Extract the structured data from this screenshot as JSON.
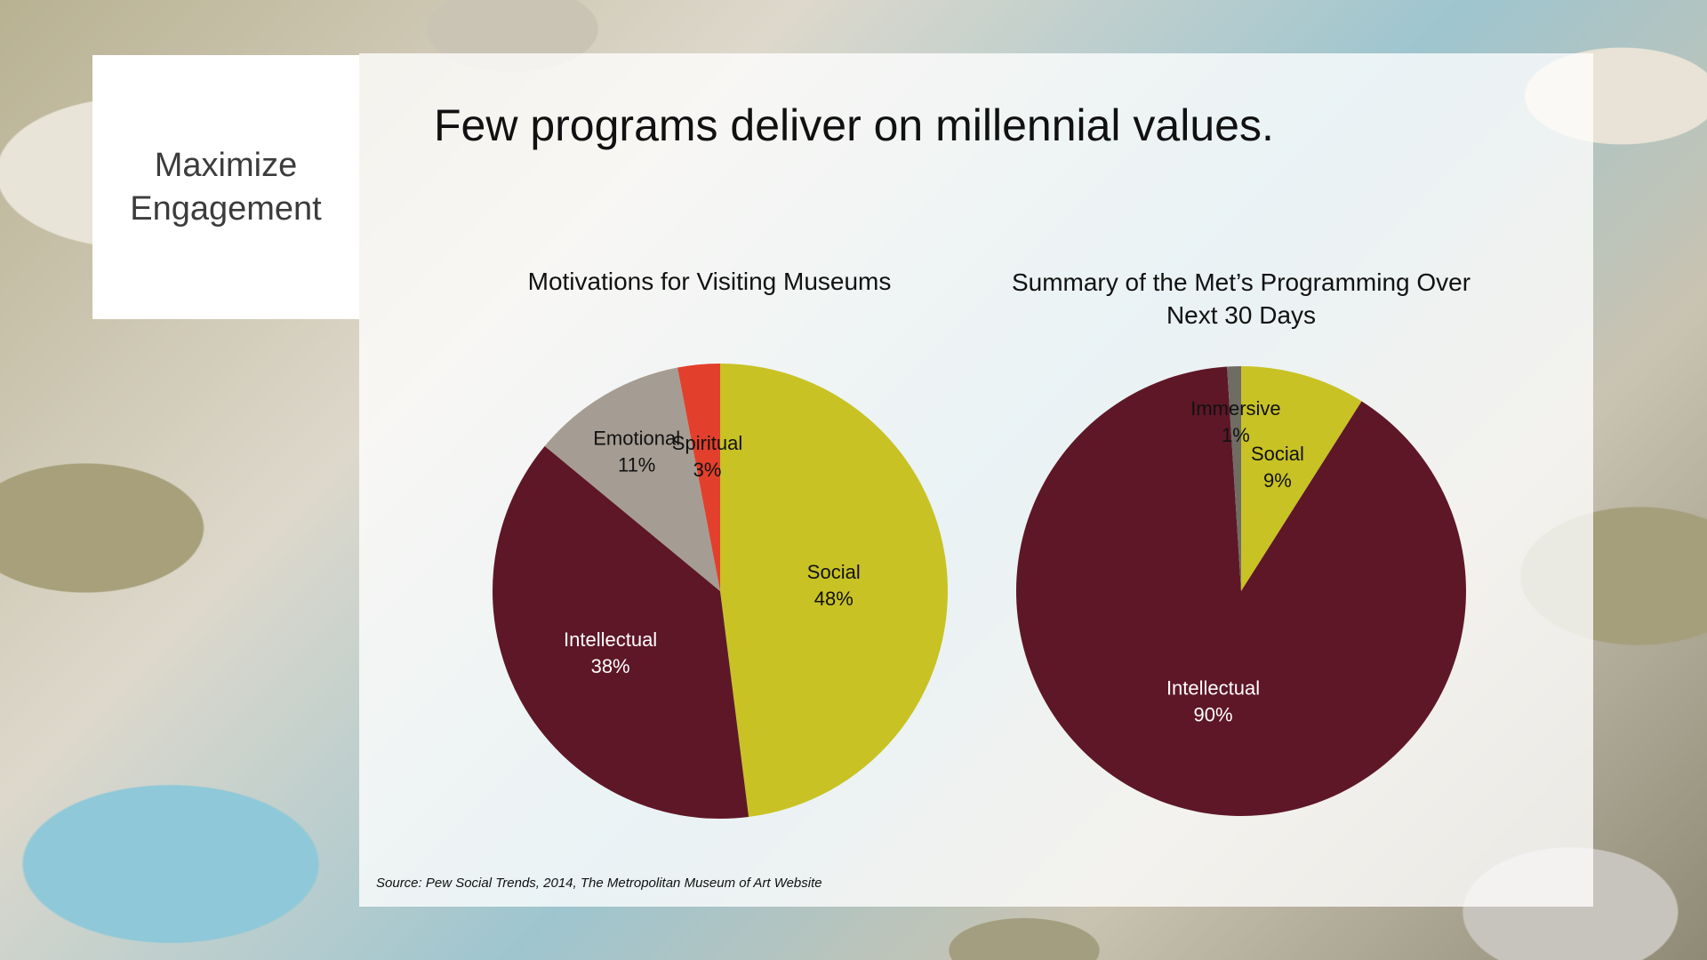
{
  "side": {
    "title": "Maximize Engagement"
  },
  "headline": "Few programs deliver on millennial values.",
  "source": "Source: Pew Social Trends, 2014, The Metropolitan Museum of Art Website",
  "colors": {
    "social": "#c8c225",
    "intellectual": "#5e1727",
    "emotional": "#a59d93",
    "spiritual": "#e2402c",
    "immersive": "#6f6c64"
  },
  "chart_data": [
    {
      "type": "pie",
      "title": "Motivations for Visiting Museums",
      "slices": [
        {
          "name": "Social",
          "value": 48,
          "label": "48%",
          "color": "#c8c225",
          "text_color": "#111111"
        },
        {
          "name": "Intellectual",
          "value": 38,
          "label": "38%",
          "color": "#5e1727",
          "text_color": "#ffffff"
        },
        {
          "name": "Emotional",
          "value": 11,
          "label": "11%",
          "color": "#a59d93",
          "text_color": "#111111"
        },
        {
          "name": "Spiritual",
          "value": 3,
          "label": "3%",
          "color": "#e2402c",
          "text_color": "#111111"
        }
      ]
    },
    {
      "type": "pie",
      "title": "Summary of the Met’s Programming Over Next 30 Days",
      "slices": [
        {
          "name": "Social",
          "value": 9,
          "label": "9%",
          "color": "#c8c225",
          "text_color": "#111111"
        },
        {
          "name": "Intellectual",
          "value": 90,
          "label": "90%",
          "color": "#5e1727",
          "text_color": "#ffffff"
        },
        {
          "name": "Immersive",
          "value": 1,
          "label": "1%",
          "color": "#6f6c64",
          "text_color": "#111111"
        }
      ]
    }
  ]
}
